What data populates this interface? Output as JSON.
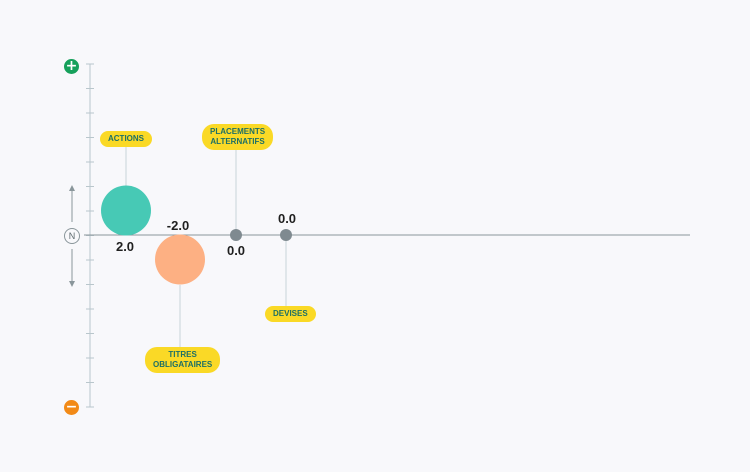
{
  "colors": {
    "plus": "#16a05b",
    "minus": "#f28a17",
    "axis": "#8a969b",
    "tick": "#b9c6cc",
    "tag_bg": "#fad926",
    "tag_text": "#1d6f66",
    "teal": "#47c9b5",
    "salmon": "#fdb083",
    "gray_dot": "#7f8a90"
  },
  "axis": {
    "plus_icon": "plus-icon",
    "minus_icon": "minus-icon",
    "neutral_label": "N",
    "up_arrow_icon": "arrow-up-icon",
    "down_arrow_icon": "arrow-down-icon"
  },
  "items": [
    {
      "label_lines": [
        "ACTIONS"
      ],
      "value": "2.0",
      "color": "#47c9b5"
    },
    {
      "label_lines": [
        "TITRES",
        "OBLIGATAIRES"
      ],
      "value": "-2.0",
      "color": "#fdb083"
    },
    {
      "label_lines": [
        "PLACEMENTS",
        "ALTERNATIFS"
      ],
      "value": "0.0",
      "color": "#7f8a90"
    },
    {
      "label_lines": [
        "DEVISES"
      ],
      "value": "0.0",
      "color": "#7f8a90"
    }
  ]
}
